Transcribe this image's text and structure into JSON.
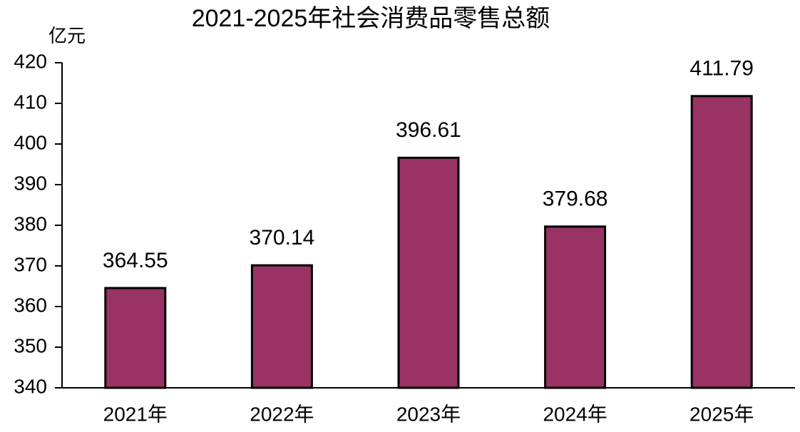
{
  "chart_data": {
    "type": "bar",
    "title": "2021-2025年社会消费品零售总额",
    "y_label": "亿元",
    "categories": [
      "2021年",
      "2022年",
      "2023年",
      "2024年",
      "2025年"
    ],
    "values": [
      364.55,
      370.14,
      396.61,
      379.68,
      411.79
    ],
    "color": "#983363",
    "ylim": [
      340,
      420
    ],
    "yticks": [
      340,
      350,
      360,
      370,
      380,
      390,
      400,
      410,
      420
    ]
  }
}
